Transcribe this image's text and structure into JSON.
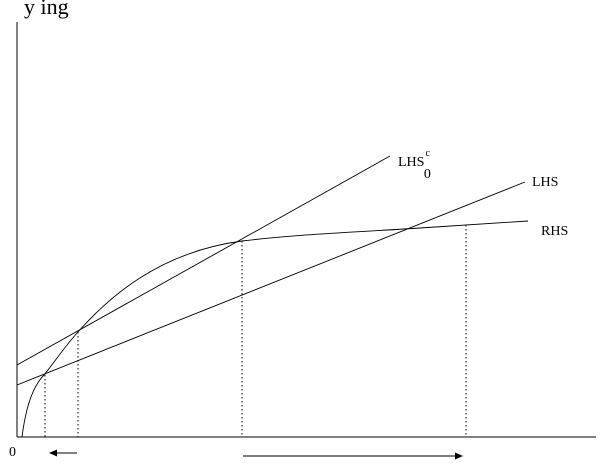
{
  "title_fragment": "y    ing",
  "origin_label": "0",
  "curves": {
    "lhs0c": {
      "base": "LHS",
      "sup": "c",
      "sub": "0"
    },
    "lhs": {
      "label": "LHS"
    },
    "rhs": {
      "label": "RHS"
    }
  },
  "guides": {
    "count": 4
  },
  "arrows": {
    "left": {
      "direction": "left"
    },
    "right": {
      "direction": "right"
    }
  }
}
